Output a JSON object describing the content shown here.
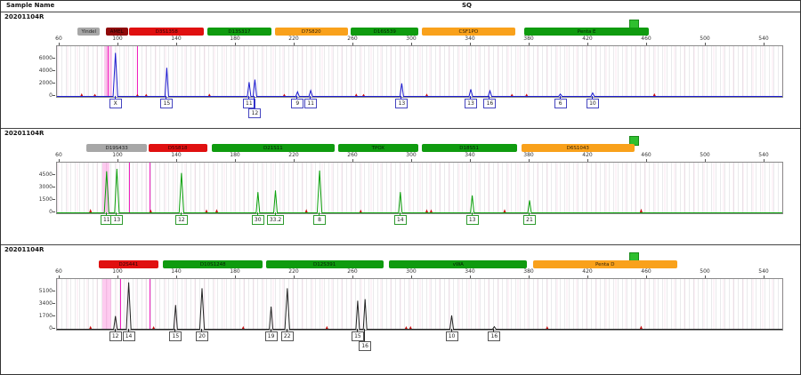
{
  "header": {
    "sample_name_col": "Sample Name",
    "sq_col": "SQ"
  },
  "x_axis": {
    "tick_labels": [
      60,
      100,
      140,
      180,
      220,
      260,
      300,
      340,
      380,
      420,
      460,
      500,
      540
    ]
  },
  "marker_colors": {
    "gray": "#a7a7a7",
    "dark_red": "#8f0a0a",
    "red": "#e01010",
    "green": "#0f9b0f",
    "orange": "#f9a11b"
  },
  "status_color_sq_pass": "#2fbf2f",
  "chart_data": {
    "type": "line",
    "note_units": "x=base pairs, y=RFU"
  },
  "panels": [
    {
      "sample_name": "20201104R",
      "trace_color": "#1c1ccf",
      "label_border": "#4646c0",
      "y_labels": [
        "6000",
        "4000",
        "2000",
        "0"
      ],
      "y_step_rfu": 2000,
      "markers": [
        {
          "name": "Yindel",
          "color": "gray",
          "bp1": 73,
          "bp2": 88
        },
        {
          "name": "AMEL",
          "color": "dark_red",
          "bp1": 92,
          "bp2": 107
        },
        {
          "name": "D3S1358",
          "color": "red",
          "bp1": 108,
          "bp2": 159
        },
        {
          "name": "D13S317",
          "color": "green",
          "bp1": 161,
          "bp2": 205
        },
        {
          "name": "D7S820",
          "color": "orange",
          "bp1": 207,
          "bp2": 257
        },
        {
          "name": "D16S539",
          "color": "green",
          "bp1": 259,
          "bp2": 305
        },
        {
          "name": "CSF1PO",
          "color": "orange",
          "bp1": 307,
          "bp2": 371
        },
        {
          "name": "Penta E",
          "color": "green",
          "bp1": 377,
          "bp2": 462
        }
      ],
      "peaks": [
        {
          "bp": 98,
          "rfu": 7000,
          "allele": "X",
          "row": 0
        },
        {
          "bp": 133,
          "rfu": 4600,
          "allele": "15",
          "row": 0
        },
        {
          "bp": 189,
          "rfu": 2300,
          "allele": "11",
          "row": 0
        },
        {
          "bp": 193,
          "rfu": 2700,
          "allele": "12",
          "row": 1
        },
        {
          "bp": 222,
          "rfu": 750,
          "allele": "9",
          "row": 0
        },
        {
          "bp": 231,
          "rfu": 950,
          "allele": "11",
          "row": 0
        },
        {
          "bp": 293,
          "rfu": 2100,
          "allele": "13",
          "row": 0
        },
        {
          "bp": 340,
          "rfu": 1150,
          "allele": "13",
          "row": 0
        },
        {
          "bp": 353,
          "rfu": 900,
          "allele": "16",
          "row": 0
        },
        {
          "bp": 401,
          "rfu": 380,
          "allele": "6",
          "row": 0
        },
        {
          "bp": 423,
          "rfu": 550,
          "allele": "10",
          "row": 0
        }
      ],
      "ils_peaks": [
        [
          75,
          520
        ],
        [
          84,
          430
        ],
        [
          113,
          400
        ],
        [
          119,
          420
        ],
        [
          162,
          450
        ],
        [
          213,
          430
        ],
        [
          262,
          460
        ],
        [
          267,
          420
        ],
        [
          310,
          470
        ],
        [
          368,
          430
        ],
        [
          378,
          450
        ],
        [
          465,
          520
        ]
      ],
      "pink_bands": [
        {
          "bp1": 90,
          "bp2": 96
        }
      ],
      "magenta_lines": [
        93,
        113
      ]
    },
    {
      "sample_name": "20201104R",
      "trace_color": "#0aa00a",
      "label_border": "#2f9b2f",
      "y_labels": [
        "4500",
        "3000",
        "1500",
        "0"
      ],
      "y_step_rfu": 1500,
      "markers": [
        {
          "name": "D19S433",
          "color": "gray",
          "bp1": 79,
          "bp2": 120
        },
        {
          "name": "D5S818",
          "color": "red",
          "bp1": 121,
          "bp2": 161
        },
        {
          "name": "D21S11",
          "color": "green",
          "bp1": 164,
          "bp2": 248
        },
        {
          "name": "TPOX",
          "color": "green",
          "bp1": 250,
          "bp2": 305
        },
        {
          "name": "D18S51",
          "color": "green",
          "bp1": 307,
          "bp2": 372
        },
        {
          "name": "D6S1043",
          "color": "orange",
          "bp1": 375,
          "bp2": 452
        }
      ],
      "peaks": [
        {
          "bp": 92,
          "rfu": 5000,
          "allele": "11",
          "row": 0
        },
        {
          "bp": 99,
          "rfu": 5300,
          "allele": "13",
          "row": 0
        },
        {
          "bp": 143,
          "rfu": 4800,
          "allele": "12",
          "row": 0
        },
        {
          "bp": 195,
          "rfu": 2500,
          "allele": "30",
          "row": 0
        },
        {
          "bp": 207,
          "rfu": 2700,
          "allele": "33.2",
          "row": 0
        },
        {
          "bp": 237,
          "rfu": 5100,
          "allele": "8",
          "row": 0
        },
        {
          "bp": 292,
          "rfu": 2500,
          "allele": "14",
          "row": 0
        },
        {
          "bp": 341,
          "rfu": 2100,
          "allele": "13",
          "row": 0
        },
        {
          "bp": 380,
          "rfu": 1500,
          "allele": "21",
          "row": 0
        }
      ],
      "ils_peaks": [
        [
          81,
          480
        ],
        [
          122,
          420
        ],
        [
          160,
          430
        ],
        [
          167,
          450
        ],
        [
          228,
          460
        ],
        [
          265,
          400
        ],
        [
          310,
          440
        ],
        [
          313,
          430
        ],
        [
          363,
          450
        ],
        [
          456,
          500
        ]
      ],
      "pink_bands": [
        {
          "bp1": 89,
          "bp2": 94
        }
      ],
      "magenta_lines": [
        107,
        121
      ]
    },
    {
      "sample_name": "20201104R",
      "trace_color": "#222222",
      "label_border": "#555555",
      "y_labels": [
        "5100",
        "3400",
        "1700",
        "0"
      ],
      "y_step_rfu": 1700,
      "markers": [
        {
          "name": "D2S441",
          "color": "red",
          "bp1": 87,
          "bp2": 128
        },
        {
          "name": "D10S1248",
          "color": "green",
          "bp1": 131,
          "bp2": 199
        },
        {
          "name": "D12S391",
          "color": "green",
          "bp1": 201,
          "bp2": 281
        },
        {
          "name": "vWA",
          "color": "green",
          "bp1": 285,
          "bp2": 379
        },
        {
          "name": "Penta D",
          "color": "orange",
          "bp1": 383,
          "bp2": 481
        }
      ],
      "peaks": [
        {
          "bp": 98,
          "rfu": 1800,
          "allele": "12",
          "row": 0
        },
        {
          "bp": 107,
          "rfu": 6400,
          "allele": "14",
          "row": 0
        },
        {
          "bp": 139,
          "rfu": 3300,
          "allele": "15",
          "row": 0
        },
        {
          "bp": 157,
          "rfu": 5600,
          "allele": "20",
          "row": 0
        },
        {
          "bp": 204,
          "rfu": 3100,
          "allele": "19",
          "row": 0
        },
        {
          "bp": 215,
          "rfu": 5600,
          "allele": "22",
          "row": 0
        },
        {
          "bp": 263,
          "rfu": 3900,
          "allele": "15",
          "row": 0
        },
        {
          "bp": 268,
          "rfu": 4100,
          "allele": "16",
          "row": 1
        },
        {
          "bp": 327,
          "rfu": 1900,
          "allele": "10",
          "row": 0
        },
        {
          "bp": 356,
          "rfu": 350,
          "allele": "16",
          "row": 0
        }
      ],
      "ils_peaks": [
        [
          81,
          470
        ],
        [
          124,
          430
        ],
        [
          185,
          440
        ],
        [
          242,
          460
        ],
        [
          296,
          430
        ],
        [
          299,
          440
        ],
        [
          392,
          420
        ],
        [
          456,
          480
        ]
      ],
      "pink_bands": [
        {
          "bp1": 89,
          "bp2": 95
        }
      ],
      "magenta_lines": [
        101,
        121
      ]
    }
  ]
}
